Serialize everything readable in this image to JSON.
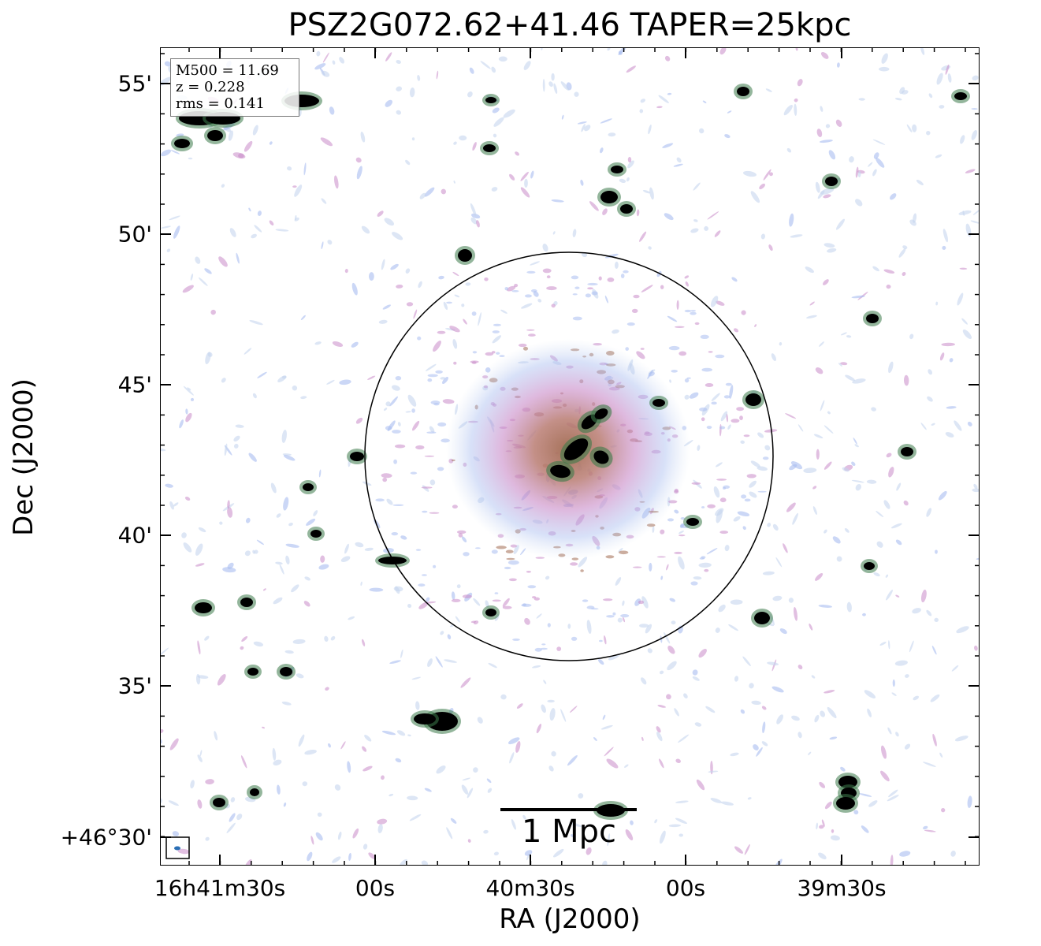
{
  "title": "PSZ2G072.62+41.46 TAPER=25kpc",
  "axes": {
    "xlabel": "RA (J2000)",
    "ylabel": "Dec (J2000)",
    "x_ticks": [
      "16h41m30s",
      "00s",
      "40m30s",
      "00s",
      "39m30s"
    ],
    "y_ticks": [
      "55'",
      "50'",
      "45'",
      "40'",
      "35'",
      "+46°30'"
    ]
  },
  "info_box": {
    "m500": "M500 = 11.69",
    "z": "z = 0.228",
    "rms": "rms = 0.141"
  },
  "scalebar": {
    "label": "1 Mpc"
  },
  "colors": {
    "noise_light": "#c6d6ef",
    "noise_blue": "#a9bdf0",
    "pink": "#c98ac8",
    "brown": "#a06a50",
    "green": "#3c7a4a",
    "source": "#000000"
  }
}
